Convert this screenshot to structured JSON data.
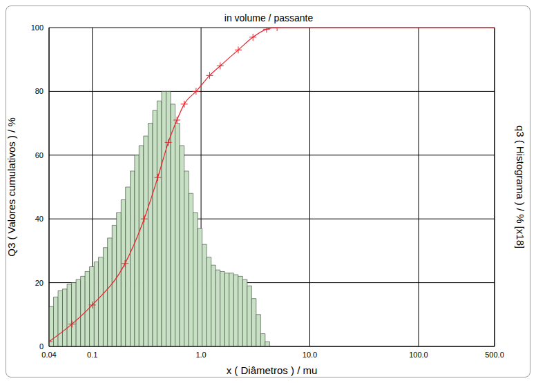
{
  "chart_data": {
    "type": "histogram",
    "title": "in volume / passante",
    "x_label": "x ( Diâmetros ) / mu",
    "y_label": "Q3 ( Valores cumulativos ) / %",
    "y2_label": "q3 ( Histograma ) / % [x18]",
    "log": "x",
    "grid": true,
    "xlim": [
      0.04,
      500
    ],
    "xticks": [
      0.04,
      0.1,
      {
        "value": 1,
        "label": "1.0"
      },
      {
        "value": 10,
        "label": "10.0"
      },
      {
        "value": 100,
        "label": "100.0"
      },
      {
        "value": 500,
        "label": "500.0"
      }
    ],
    "ylim": [
      0,
      100
    ],
    "yticks": [
      0,
      20,
      40,
      60,
      80,
      100
    ],
    "series": [
      {
        "type": "histogram",
        "color": "#c8e0c4",
        "bins": [
          0.04,
          0.044,
          0.0484,
          0.0532,
          0.0586,
          0.0644,
          0.0709,
          0.078,
          0.0857,
          0.0943,
          0.104,
          0.114,
          0.126,
          0.138,
          0.152,
          0.167,
          0.184,
          0.202,
          0.223,
          0.245,
          0.269,
          0.296,
          0.326,
          0.359,
          0.394,
          0.434,
          0.477,
          0.525,
          0.577,
          0.635,
          0.699,
          0.769,
          0.845,
          0.93,
          1.023,
          1.125,
          1.238,
          1.361,
          1.497,
          1.647,
          1.812,
          1.993,
          2.192,
          2.412,
          2.653,
          2.918,
          3.21,
          3.531,
          3.884,
          4.273
        ],
        "values": [
          12.5,
          15.5,
          17.5,
          18,
          19.5,
          20,
          21,
          22,
          23.5,
          25,
          26.5,
          28,
          31,
          34,
          38,
          42,
          46,
          50,
          55,
          60,
          63,
          66,
          70,
          74,
          77,
          80,
          80,
          76,
          70,
          63,
          55,
          48,
          42,
          37,
          32,
          28,
          25.5,
          24,
          23.5,
          23,
          23,
          22.5,
          22,
          21,
          19,
          15,
          10,
          4,
          1.5
        ]
      },
      {
        "type": "line",
        "color": "#e8202a",
        "marker": "plus",
        "x": [
          0.04,
          0.065,
          0.1,
          0.2,
          0.3,
          0.4,
          0.5,
          0.6,
          0.7,
          0.9,
          1.2,
          1.5,
          2.2,
          3,
          4,
          5,
          500
        ],
        "values": [
          1.5,
          7,
          13,
          26,
          40,
          53,
          64,
          71,
          76,
          80,
          85,
          88,
          93,
          97,
          99.5,
          100,
          100
        ]
      }
    ]
  }
}
